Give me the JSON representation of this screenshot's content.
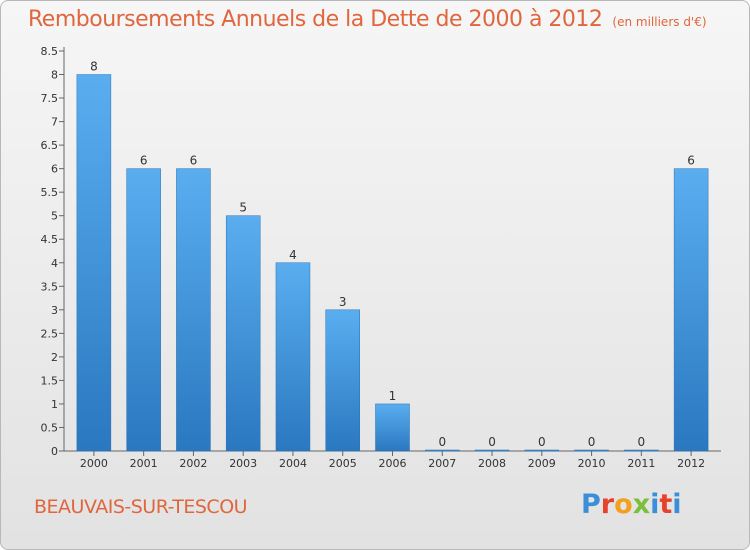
{
  "header": {
    "title": "Remboursements Annuels de la Dette de 2000 à 2012",
    "subtitle": "(en milliers d'€)"
  },
  "footer": {
    "commune": "BEAUVAIS-SUR-TESCOU",
    "logo_letters": [
      "P",
      "r",
      "o",
      "x",
      "i",
      "t",
      "i"
    ]
  },
  "colors": {
    "title": "#e0663d",
    "bar_top": "#5aaef0",
    "bar_bottom": "#2a78c0",
    "logo": [
      "#3a8fd8",
      "#e7412b",
      "#f2a01d",
      "#7bbf3a",
      "#3a8fd8",
      "#e7412b",
      "#3a8fd8"
    ]
  },
  "chart_data": {
    "type": "bar",
    "title": "Remboursements Annuels de la Dette de 2000 à 2012",
    "subtitle": "(en milliers d'€)",
    "categories": [
      "2000",
      "2001",
      "2002",
      "2003",
      "2004",
      "2005",
      "2006",
      "2007",
      "2008",
      "2009",
      "2010",
      "2011",
      "2012"
    ],
    "values": [
      8,
      6,
      6,
      5,
      4,
      3,
      1,
      0,
      0,
      0,
      0,
      0,
      6
    ],
    "data_labels": [
      "8",
      "6",
      "6",
      "5",
      "4",
      "3",
      "1",
      "0",
      "0",
      "0",
      "0",
      "0",
      "6"
    ],
    "ylim": [
      0,
      8.5
    ],
    "yticks": [
      0,
      0.5,
      1,
      1.5,
      2,
      2.5,
      3,
      3.5,
      4,
      4.5,
      5,
      5.5,
      6,
      6.5,
      7,
      7.5,
      8,
      8.5
    ],
    "ytick_labels": [
      "0",
      "0.5",
      "1",
      "1.5",
      "2",
      "2.5",
      "3",
      "3.5",
      "4",
      "4.5",
      "5",
      "5.5",
      "6",
      "6.5",
      "7",
      "7.5",
      "8",
      "8.5"
    ],
    "xlabel": "",
    "ylabel": "",
    "grid": false,
    "legend": "none"
  }
}
